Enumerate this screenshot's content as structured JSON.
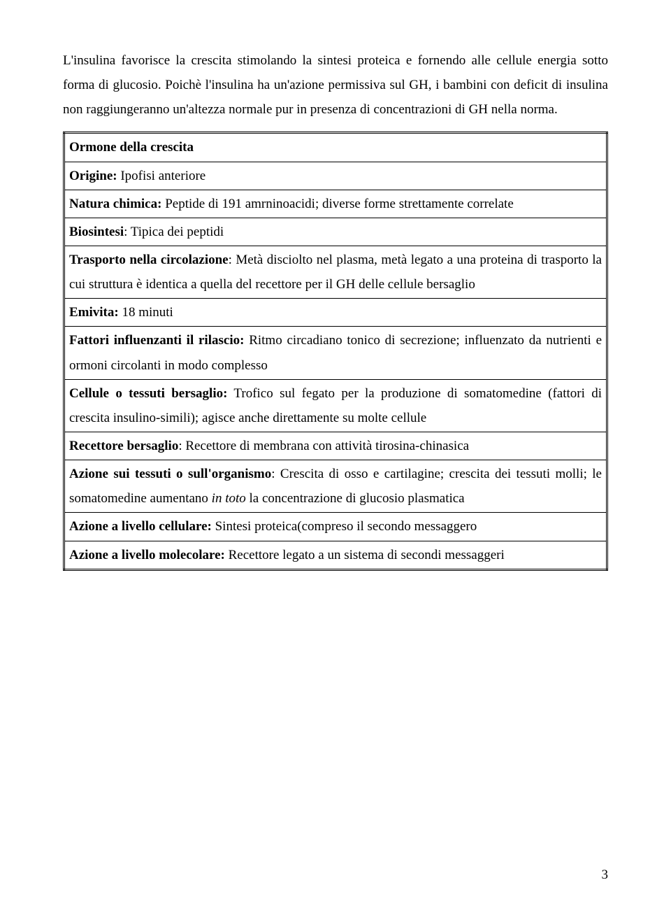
{
  "intro": {
    "p1": "L'insulina favorisce la crescita stimolando la sintesi proteica e fornendo alle cellule energia sotto forma di glucosio. Poichè l'insulina ha un'azione permissiva sul GH, i bambini con deficit di insulina non raggiungeranno un'altezza normale pur in presenza di concentrazioni di GH nella norma."
  },
  "table": {
    "title": "Ormone della crescita",
    "rows": [
      {
        "label": "Origine:",
        "text": " Ipofisi anteriore"
      },
      {
        "label": "Natura chimica:",
        "text": " Peptide di 191 amrninoacidi; diverse forme strettamente correlate"
      },
      {
        "label": "Biosintesi",
        "text": ": Tipica dei peptidi"
      },
      {
        "label": "Trasporto nella circolazione",
        "text": ": Metà disciolto nel plasma, metà legato a una proteina di trasporto la cui struttura è identica a quella del recettore per il GH delle cellule bersaglio"
      },
      {
        "label": "Emivita:",
        "text": " 18 minuti"
      },
      {
        "label": "Fattori influenzanti il rilascio:",
        "text": " Ritmo circadiano tonico di secrezione; influenzato da nutrienti e ormoni circolanti in modo complesso"
      },
      {
        "label": "Cellule o tessuti bersaglio:",
        "text": " Trofico sul fegato per la produzione di somatomedine (fattori di crescita insulino-simili); agisce anche direttamente su molte cellule"
      },
      {
        "label": "Recettore bersaglio",
        "text": ": Recettore di membrana con attività tirosina-chinasica"
      },
      {
        "label": "Azione sui tessuti o sull'organismo",
        "text_pre": ": Crescita di osso e cartilagine; crescita dei tessuti molli; le somatomedine aumentano ",
        "italic": "in toto",
        "text_post": "  la concentrazione di glucosio plasmatica"
      },
      {
        "label": "Azione a livello cellulare:",
        "text": " Sintesi proteica(compreso il secondo messaggero"
      },
      {
        "label": "Azione a livello molecolare:",
        "text": " Recettore legato a un sistema di secondi messaggeri"
      }
    ]
  },
  "page_number": "3"
}
